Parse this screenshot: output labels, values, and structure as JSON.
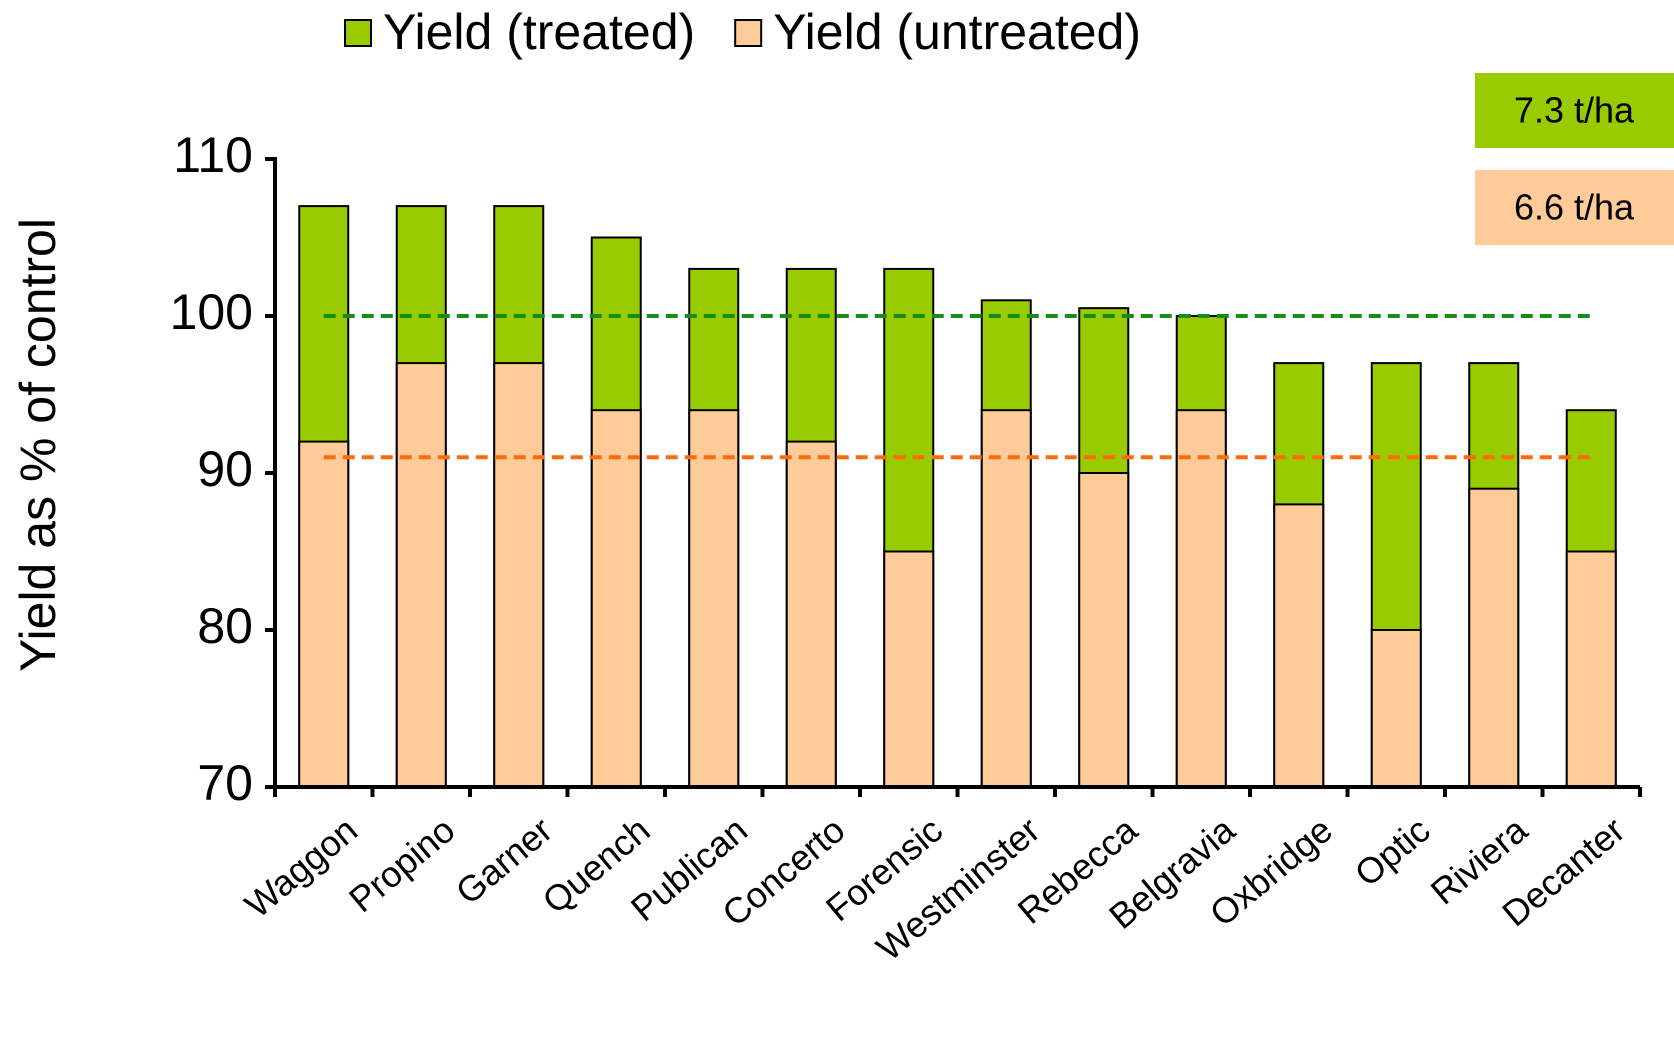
{
  "chart_data": {
    "type": "bar",
    "y_label": "Yield as % of control",
    "categories": [
      "Waggon",
      "Propino",
      "Garner",
      "Quench",
      "Publican",
      "Concerto",
      "Forensic",
      "Westminster",
      "Rebecca",
      "Belgravia",
      "Oxbridge",
      "Optic",
      "Riviera",
      "Decanter"
    ],
    "series": [
      {
        "name": "Yield (treated)",
        "color": "#99cc00",
        "values": [
          107,
          107,
          107,
          105,
          103,
          103,
          103,
          101,
          100.5,
          100,
          97,
          97,
          97,
          94
        ]
      },
      {
        "name": "Yield (untreated)",
        "color": "#ffcc99",
        "values": [
          92,
          97,
          97,
          94,
          94,
          92,
          85,
          94,
          90,
          94,
          88,
          80,
          89,
          85
        ]
      }
    ],
    "reference_lines": [
      {
        "value": 100,
        "color": "#1a8a1a"
      },
      {
        "value": 91,
        "color": "#ff6a0a"
      }
    ],
    "annotations": [
      {
        "text": "7.3 t/ha",
        "color": "#99cc00"
      },
      {
        "text": "6.6 t/ha",
        "color": "#ffcc99"
      }
    ],
    "ylim": [
      70,
      110
    ],
    "yticks": [
      70,
      80,
      90,
      100,
      110
    ]
  }
}
